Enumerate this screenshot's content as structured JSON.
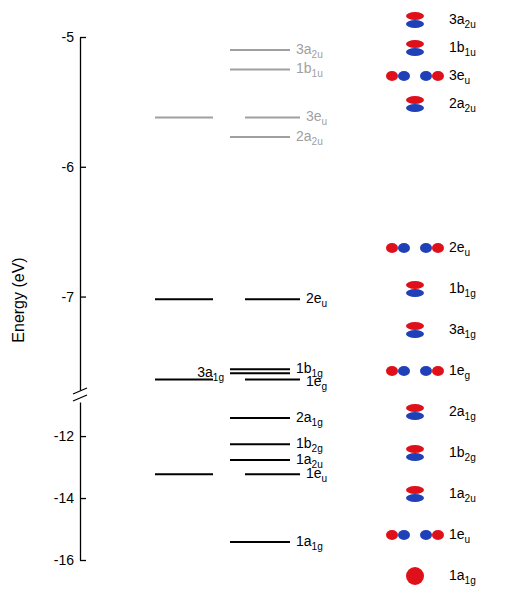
{
  "chart_data": {
    "type": "energy_level",
    "y_label": "Energy (eV)",
    "axis_segments": [
      {
        "ylim": [
          -7.72,
          -5
        ],
        "yticks": [
          -7,
          -6,
          -5
        ]
      },
      {
        "ylim": [
          -16,
          -10.9
        ],
        "yticks": [
          -16,
          -14,
          -12
        ]
      }
    ],
    "series": [
      {
        "color": "#a0a0a0",
        "labels": [
          "3a2u",
          "1b1u",
          "3eu",
          "2a2u"
        ],
        "values": [
          -5.1,
          -5.25,
          -5.62,
          -5.77
        ],
        "degeneracy": [
          1,
          1,
          2,
          1
        ]
      },
      {
        "color": "#000000",
        "labels": [
          "2eu",
          "1b1g",
          "3a1g",
          "1eg",
          "2a1g",
          "1b2g",
          "1a2u",
          "1eu",
          "1a1g"
        ],
        "values": [
          -7.02,
          -7.56,
          -7.59,
          -7.64,
          -11.42,
          -12.26,
          -12.77,
          -13.23,
          -15.42
        ],
        "degeneracy": [
          2,
          1,
          1,
          2,
          1,
          1,
          1,
          2,
          1
        ]
      }
    ]
  }
}
